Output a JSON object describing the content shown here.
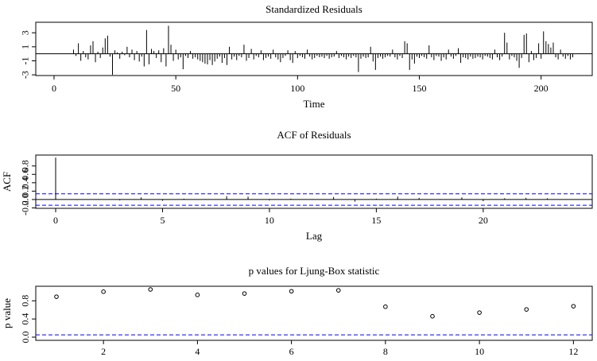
{
  "chart_data": [
    {
      "type": "spike",
      "title": "Standardized Residuals",
      "x_label": "Time",
      "x": [
        8,
        9,
        10,
        11,
        12,
        13,
        14,
        15,
        16,
        17,
        18,
        19,
        20,
        21,
        22,
        23,
        24,
        25,
        26,
        27,
        28,
        29,
        30,
        31,
        32,
        33,
        34,
        35,
        36,
        37,
        38,
        39,
        40,
        41,
        42,
        43,
        44,
        45,
        46,
        47,
        48,
        49,
        50,
        51,
        52,
        53,
        54,
        55,
        56,
        57,
        58,
        59,
        60,
        61,
        62,
        63,
        64,
        65,
        66,
        67,
        68,
        69,
        70,
        71,
        72,
        73,
        74,
        75,
        76,
        77,
        78,
        79,
        80,
        81,
        82,
        83,
        84,
        85,
        86,
        87,
        88,
        89,
        90,
        91,
        92,
        93,
        94,
        95,
        96,
        97,
        98,
        99,
        100,
        101,
        102,
        103,
        104,
        105,
        106,
        107,
        108,
        109,
        110,
        111,
        112,
        113,
        114,
        115,
        116,
        117,
        118,
        119,
        120,
        121,
        122,
        123,
        124,
        125,
        126,
        127,
        128,
        129,
        130,
        131,
        132,
        133,
        134,
        135,
        136,
        137,
        138,
        139,
        140,
        141,
        142,
        143,
        144,
        145,
        146,
        147,
        148,
        149,
        150,
        151,
        152,
        153,
        154,
        155,
        156,
        157,
        158,
        159,
        160,
        161,
        162,
        163,
        164,
        165,
        166,
        167,
        168,
        169,
        170,
        171,
        172,
        173,
        174,
        175,
        176,
        177,
        178,
        179,
        180,
        181,
        182,
        183,
        184,
        185,
        186,
        187,
        188,
        189,
        190,
        191,
        192,
        193,
        194,
        195,
        196,
        197,
        198,
        199,
        200,
        201,
        202,
        203,
        204,
        205,
        206,
        207,
        208,
        209,
        210,
        211,
        212,
        213
      ],
      "values": [
        0.6,
        -0.3,
        1.5,
        -1.0,
        0.4,
        -0.5,
        -0.8,
        1.2,
        1.8,
        -1.2,
        0.3,
        -0.6,
        0.9,
        2.2,
        2.6,
        -0.4,
        -3.0,
        0.5,
        0.2,
        -0.7,
        0.3,
        -0.2,
        1.0,
        -0.5,
        0.6,
        -0.9,
        0.4,
        -1.1,
        -0.4,
        -1.8,
        3.4,
        -1.5,
        0.7,
        0.4,
        -0.6,
        0.5,
        -1.2,
        0.8,
        -1.8,
        4.0,
        1.3,
        -1.0,
        0.6,
        -0.8,
        -0.5,
        -2.2,
        -0.3,
        -0.6,
        0.4,
        -0.7,
        -0.5,
        -0.8,
        -1.0,
        -1.2,
        -1.4,
        -1.5,
        -0.9,
        -1.6,
        -1.1,
        -0.7,
        -0.4,
        -1.3,
        -0.6,
        -1.6,
        1.0,
        -0.8,
        -0.4,
        -0.9,
        -0.3,
        -0.5,
        1.3,
        -1.0,
        -0.6,
        0.7,
        -0.8,
        -0.3,
        -0.5,
        0.5,
        -0.9,
        -0.6,
        -0.4,
        -0.7,
        0.6,
        -0.5,
        -0.8,
        -1.2,
        -0.6,
        -0.3,
        0.5,
        -0.9,
        -1.3,
        0.4,
        -0.6,
        -0.3,
        -0.5,
        -0.7,
        0.6,
        -0.4,
        -0.8,
        -0.6,
        -0.3,
        -0.5,
        -0.4,
        -0.6,
        -0.3,
        -0.7,
        -0.5,
        -0.4,
        0.4,
        -0.6,
        -0.3,
        -0.5,
        -0.8,
        -0.4,
        -0.6,
        -0.3,
        -0.5,
        -2.6,
        -0.7,
        -0.4,
        -0.6,
        -0.5,
        1.0,
        -1.1,
        -2.3,
        -0.6,
        -0.4,
        -0.7,
        -0.5,
        -0.3,
        -0.4,
        0.6,
        -0.5,
        -0.8,
        -0.3,
        -0.6,
        1.8,
        1.5,
        -2.3,
        -0.8,
        -1.4,
        -0.4,
        -0.6,
        -0.3,
        -0.5,
        -0.7,
        1.2,
        -0.5,
        -0.9,
        -0.3,
        -0.4,
        -1.0,
        -0.5,
        -0.8,
        0.6,
        -0.4,
        -0.7,
        -0.3,
        0.8,
        -1.3,
        -0.5,
        -0.6,
        -0.8,
        -0.4,
        -0.7,
        -0.6,
        -0.4,
        -0.5,
        -0.8,
        -0.3,
        -0.4,
        -0.6,
        -0.8,
        0.6,
        -0.5,
        -0.9,
        -0.4,
        3.0,
        1.6,
        -0.8,
        -0.3,
        -0.5,
        -1.0,
        -2.0,
        -0.6,
        2.7,
        2.9,
        -1.2,
        0.4,
        -0.9,
        -0.6,
        1.5,
        -0.7,
        3.2,
        1.8,
        1.4,
        0.9,
        1.6,
        -0.5,
        -0.8,
        0.6,
        -0.4,
        -0.7,
        -0.3,
        -0.8,
        -0.5
      ],
      "color": "#000000",
      "zero_line": 0,
      "xlim": [
        -7.5,
        221
      ],
      "xticks": [
        0,
        50,
        100,
        150,
        200
      ],
      "ylim": [
        -3.1,
        4.5
      ],
      "yticks": [
        -3,
        -1,
        1,
        3
      ]
    },
    {
      "type": "spike",
      "title": "ACF of Residuals",
      "x_label": "Lag",
      "y_label": "ACF",
      "x": [
        0,
        1,
        2,
        3,
        4,
        5,
        6,
        7,
        8,
        9,
        10,
        11,
        12,
        13,
        14,
        15,
        16,
        17,
        18,
        19,
        20,
        21,
        22,
        23
      ],
      "values": [
        1.0,
        -0.01,
        0.01,
        -0.02,
        0.05,
        -0.03,
        0.02,
        0.01,
        0.08,
        0.07,
        -0.02,
        0.02,
        0.01,
        0.06,
        -0.05,
        0.02,
        0.07,
        0.04,
        0.01,
        0.05,
        -0.04,
        0.03,
        0.04,
        0.03
      ],
      "color": "#000000",
      "zero_line": 0,
      "ref_lines": [
        0.137,
        -0.137
      ],
      "ref_color": "#0000ff",
      "xlim": [
        -0.93,
        25.1
      ],
      "xticks": [
        0,
        5,
        10,
        15,
        20
      ],
      "ylim": [
        -0.21,
        1.06
      ],
      "yticks": [
        -0.2,
        {
          "value": 0,
          "label": "0.0"
        },
        0.2,
        0.4,
        0.6,
        0.8
      ]
    },
    {
      "type": "scatter",
      "title": "p values for Ljung-Box statistic",
      "y_label": "p value",
      "x": [
        1,
        2,
        3,
        4,
        5,
        6,
        7,
        8,
        9,
        10,
        11,
        12
      ],
      "values": [
        0.89,
        1.0,
        1.05,
        0.93,
        0.96,
        1.01,
        1.03,
        0.67,
        0.46,
        0.54,
        0.61,
        0.68
      ],
      "color": "#000000",
      "ref_lines": [
        0.05
      ],
      "ref_color": "#0000ff",
      "xlim": [
        0.56,
        12.4
      ],
      "xticks": [
        2,
        4,
        6,
        8,
        10,
        12
      ],
      "ylim": [
        -0.07,
        1.12
      ],
      "yticks": [
        {
          "value": 0,
          "label": "0.0"
        },
        0.4,
        0.8
      ]
    }
  ]
}
